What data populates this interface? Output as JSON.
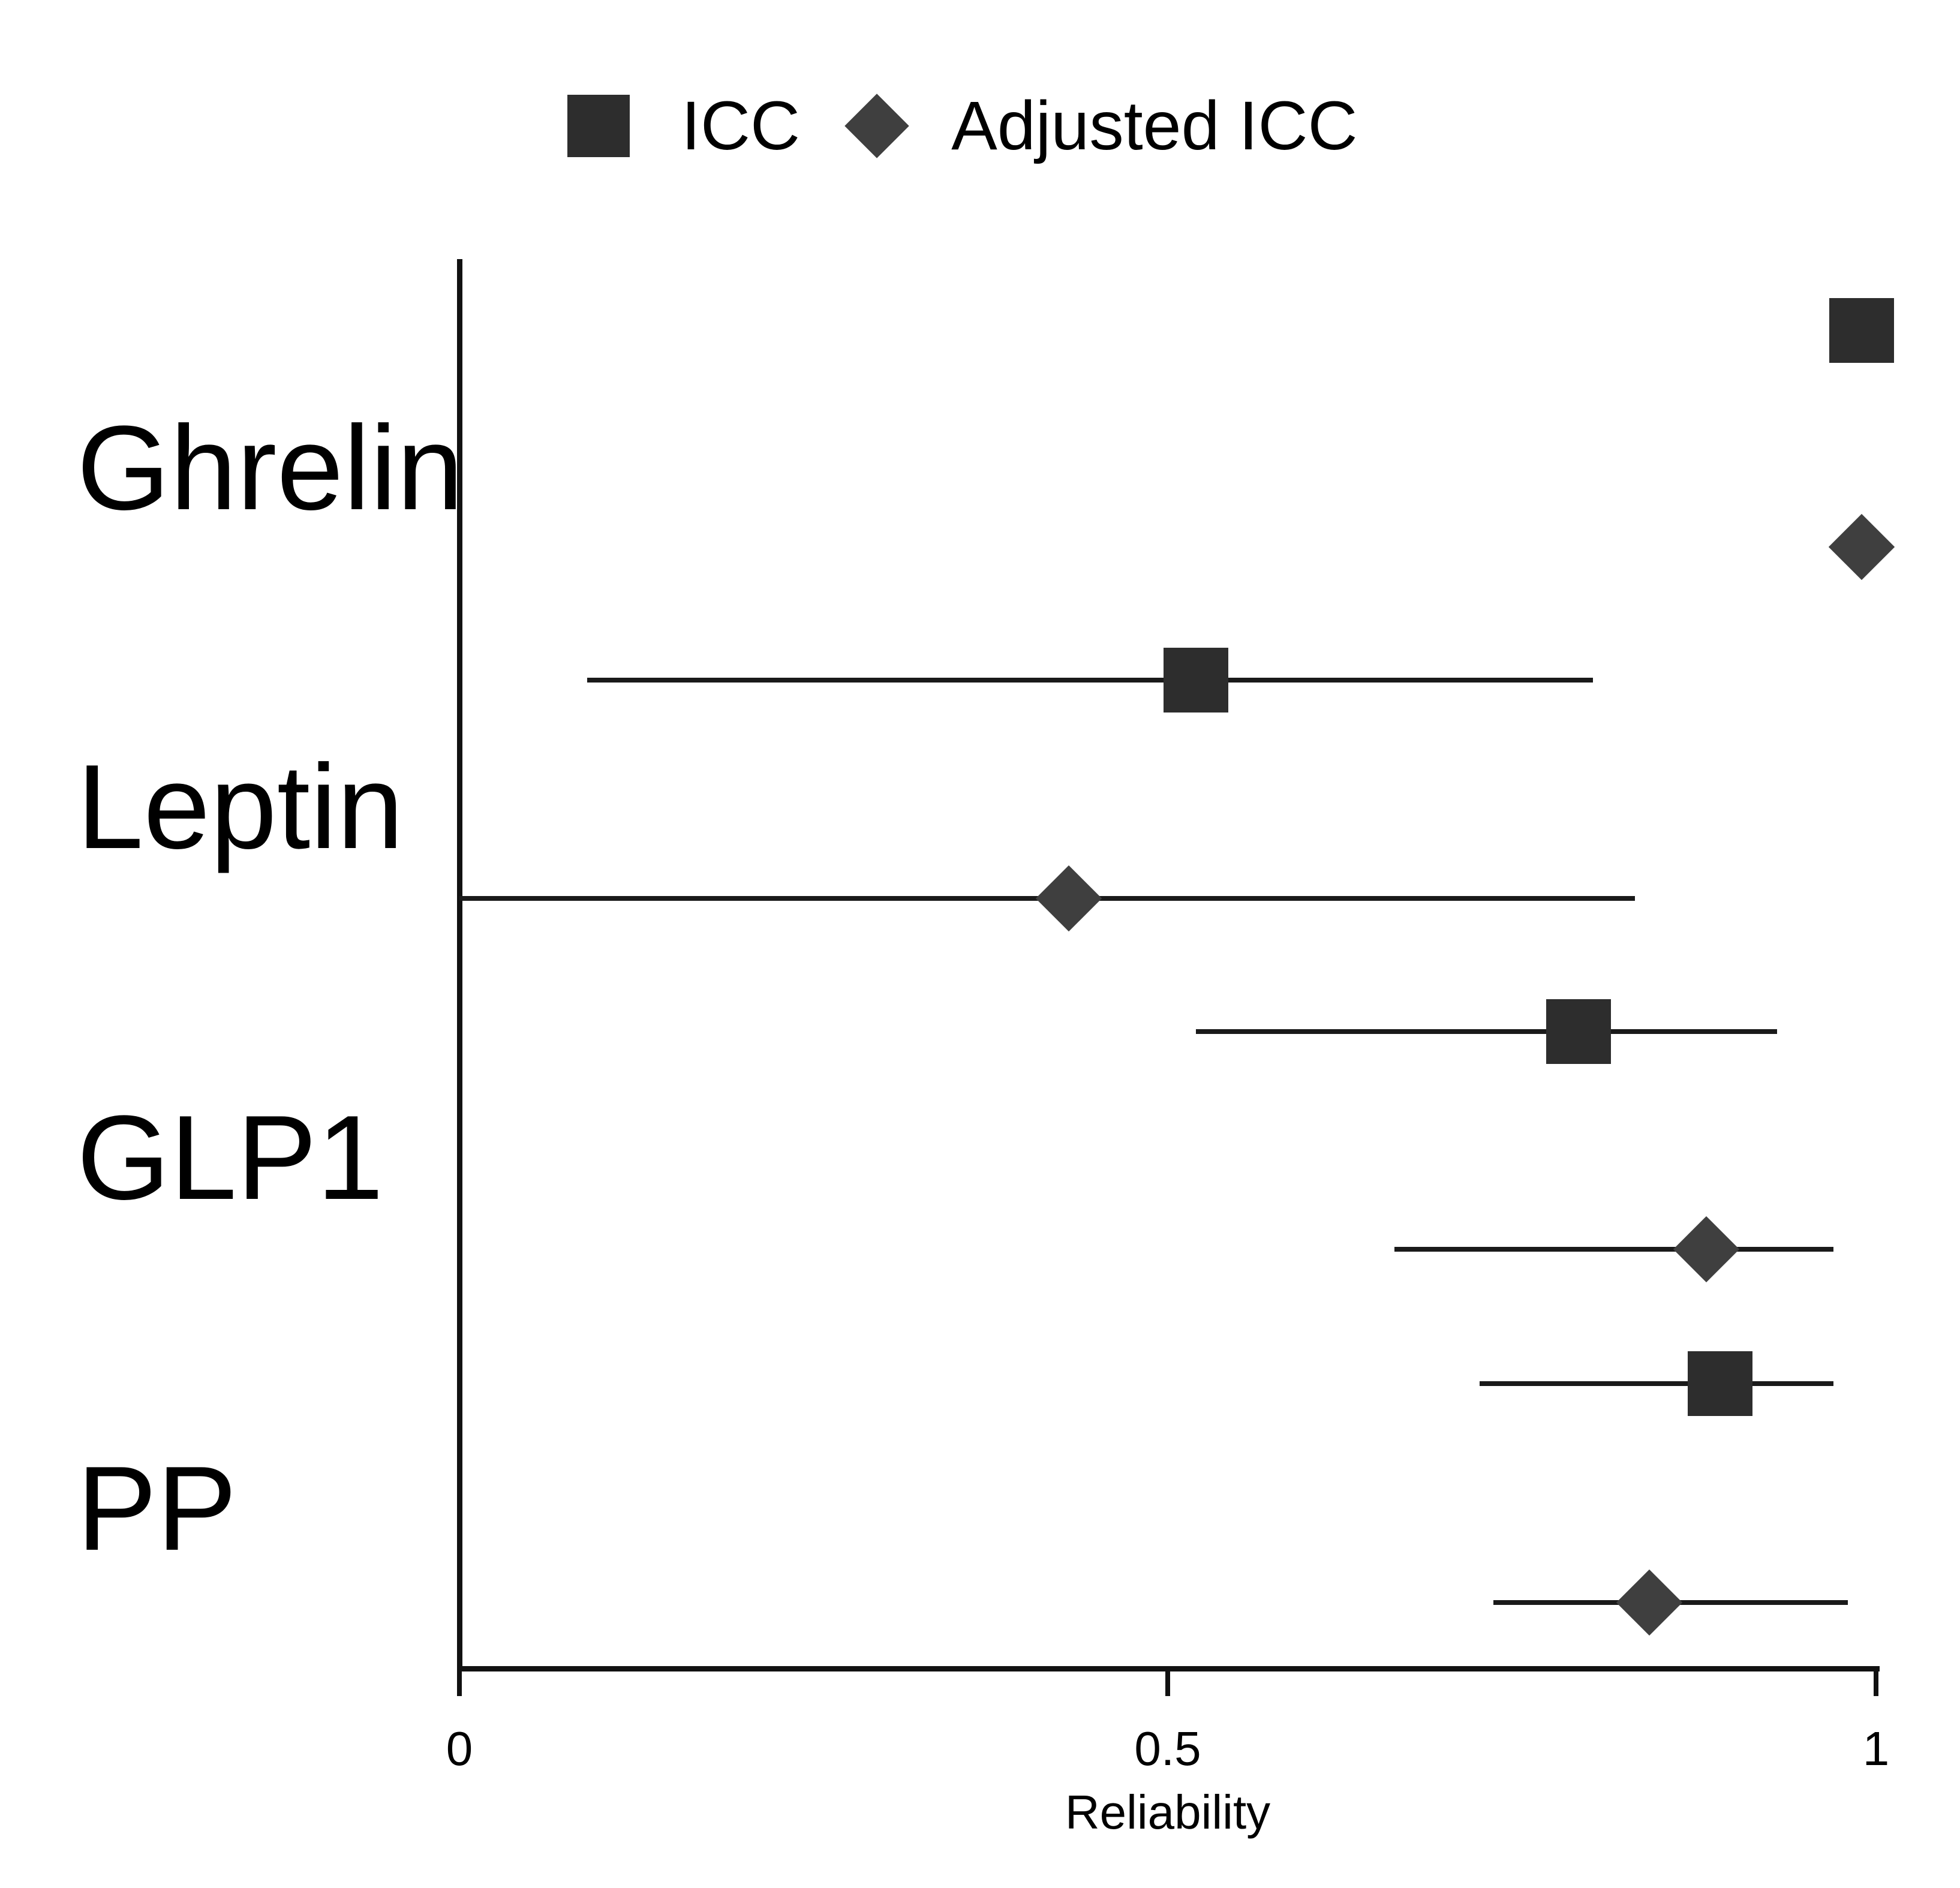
{
  "figure": {
    "background": "#ffffff",
    "text_color": "#000000"
  },
  "chart_data": {
    "type": "scatter",
    "subtype": "forest_plot_with_error_bars",
    "title": "",
    "xlabel": "Reliability",
    "ylabel": "",
    "xlim": [
      0,
      1
    ],
    "x_ticks": [
      0,
      0.5,
      1
    ],
    "x_tick_labels": [
      "0",
      "0.5",
      "1"
    ],
    "grid": false,
    "legend": {
      "position": "top-center",
      "entries": [
        "ICC",
        "Adjusted ICC"
      ]
    },
    "categories": [
      "Ghrelin",
      "Leptin",
      "GLP1",
      "PP"
    ],
    "series": [
      {
        "name": "ICC",
        "marker": "square",
        "color": "#2d2d2d",
        "values": [
          0.99,
          0.52,
          0.79,
          0.89
        ],
        "ci_low": [
          null,
          0.09,
          0.52,
          0.72
        ],
        "ci_high": [
          null,
          0.8,
          0.93,
          0.97
        ]
      },
      {
        "name": "Adjusted ICC",
        "marker": "diamond",
        "color": "#3f3f3f",
        "values": [
          0.99,
          0.43,
          0.88,
          0.84
        ],
        "ci_low": [
          null,
          0.0,
          0.66,
          0.73
        ],
        "ci_high": [
          null,
          0.83,
          0.97,
          0.98
        ]
      }
    ],
    "axis_color": "#111111",
    "ci_line_color": "#1a1a1a",
    "text_color": "#000000"
  }
}
